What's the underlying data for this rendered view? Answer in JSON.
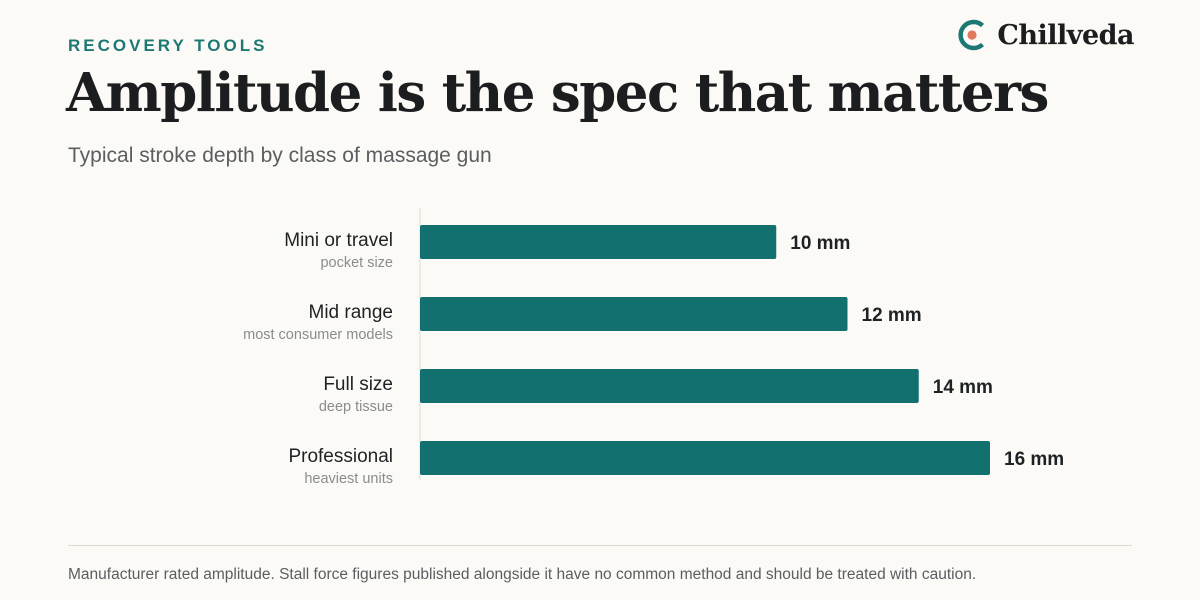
{
  "header": {
    "eyebrow": "RECOVERY TOOLS",
    "title": "Amplitude is the spec that matters",
    "subtitle": "Typical stroke depth by class of massage gun"
  },
  "brand": {
    "name": "Chillveda",
    "logo_icon": "c-ring-with-dot-icon",
    "ring_color": "#1d7873",
    "dot_color": "#e07a5f"
  },
  "colors": {
    "bar": "#12706f",
    "accent": "#1d7873"
  },
  "chart_data": {
    "type": "bar",
    "orientation": "horizontal",
    "categories": [
      "Mini or travel",
      "Mid range",
      "Full size",
      "Professional"
    ],
    "category_notes": [
      "pocket size",
      "most consumer models",
      "deep tissue",
      "heaviest units"
    ],
    "values": [
      10,
      12,
      14,
      16
    ],
    "value_labels": [
      "10 mm",
      "12 mm",
      "14 mm",
      "16 mm"
    ],
    "unit": "mm",
    "xlim": [
      0,
      16
    ],
    "grid": false,
    "legend": "none"
  },
  "footer": {
    "note": "Manufacturer rated amplitude. Stall force figures published alongside it have no common method and should be treated with caution."
  }
}
